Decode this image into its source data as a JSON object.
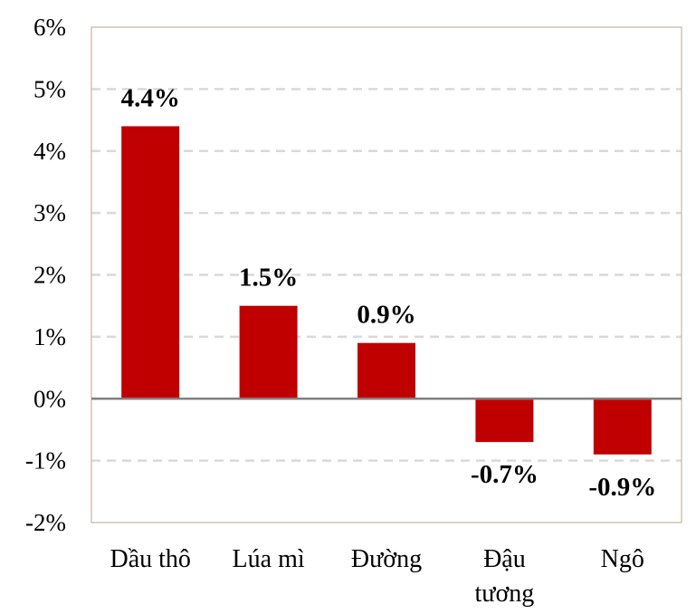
{
  "chart_data": {
    "type": "bar",
    "categories": [
      [
        "Dầu thô"
      ],
      [
        "Lúa mì"
      ],
      [
        "Đường"
      ],
      [
        "Đậu",
        "tương"
      ],
      [
        "Ngô"
      ]
    ],
    "values": [
      4.4,
      1.5,
      0.9,
      -0.7,
      -0.9
    ],
    "data_labels": [
      "4.4%",
      "1.5%",
      "0.9%",
      "-0.7%",
      "-0.9%"
    ],
    "yticks": [
      6,
      5,
      4,
      3,
      2,
      1,
      0,
      -1,
      -2
    ],
    "ytick_labels": [
      "6%",
      "5%",
      "4%",
      "3%",
      "2%",
      "1%",
      "0%",
      "-1%",
      "-2%"
    ],
    "ylim": [
      -2,
      6
    ],
    "grid": true,
    "title": "",
    "xlabel": "",
    "ylabel": "",
    "colors": {
      "bar": "#c00000",
      "grid": "#d9d9d9",
      "frame": "#c8b4a4",
      "zero_line": "#808080"
    }
  }
}
